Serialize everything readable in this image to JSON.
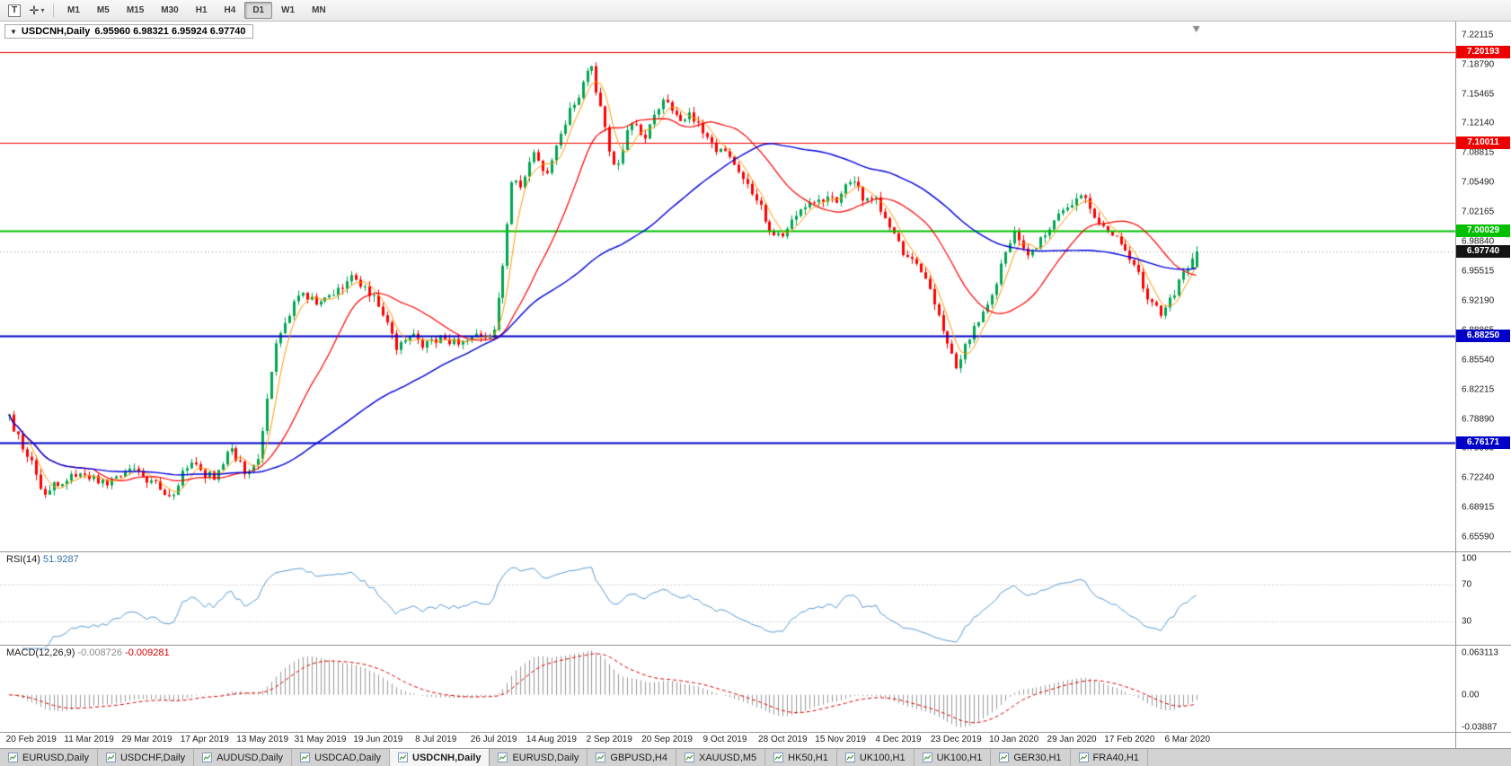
{
  "toolbar": {
    "text_tool_glyph": "T",
    "crosshair_glyph": "✛",
    "dropdown_caret": "▾",
    "timeframes": [
      "M1",
      "M5",
      "M15",
      "M30",
      "H1",
      "H4",
      "D1",
      "W1",
      "MN"
    ],
    "active_timeframe": "D1"
  },
  "chart": {
    "title_arrow": "▼",
    "symbol_title": "USDCNH,Daily",
    "ohlc_text": "6.95960 6.98321 6.95924 6.97740"
  },
  "chart_data": {
    "type": "candlestick",
    "symbol": "USDCNH",
    "timeframe": "Daily",
    "bars": 268,
    "last_bar_ohlc": [
      6.9596,
      6.98321,
      6.95924,
      6.9774
    ],
    "price_axis": {
      "min": 6.648,
      "max": 7.232,
      "ticks": [
        "7.22115",
        "7.18790",
        "7.15465",
        "7.12140",
        "7.08815",
        "7.05490",
        "7.02165",
        "6.98840",
        "6.95515",
        "6.92190",
        "6.88865",
        "6.85540",
        "6.82215",
        "6.78890",
        "6.75565",
        "6.72240",
        "6.68915",
        "6.65590"
      ]
    },
    "x_labels": [
      "20 Feb 2019",
      "11 Mar 2019",
      "29 Mar 2019",
      "17 Apr 2019",
      "13 May 2019",
      "31 May 2019",
      "19 Jun 2019",
      "8 Jul 2019",
      "26 Jul 2019",
      "14 Aug 2019",
      "2 Sep 2019",
      "20 Sep 2019",
      "9 Oct 2019",
      "28 Oct 2019",
      "15 Nov 2019",
      "4 Dec 2019",
      "23 Dec 2019",
      "10 Jan 2020",
      "29 Jan 2020",
      "17 Feb 2020",
      "6 Mar 2020"
    ],
    "horizontal_lines": [
      {
        "price": 7.20193,
        "label": "7.20193",
        "color": "#ee0000",
        "width": 1
      },
      {
        "price": 7.10011,
        "label": "7.10011",
        "color": "#ee0000",
        "width": 1
      },
      {
        "price": 7.00029,
        "label": "7.00029",
        "color": "#00c000",
        "width": 2
      },
      {
        "price": 6.8825,
        "label": "6.88250",
        "color": "#0000c8",
        "width": 2
      },
      {
        "price": 6.76171,
        "label": "6.76171",
        "color": "#0000c8",
        "width": 2
      }
    ],
    "current_price": {
      "value": 6.9774,
      "label": "6.97740",
      "badge_color": "#141414"
    },
    "colors": {
      "bull": "#00a651",
      "bear": "#ff0000",
      "background": "#ffffff"
    },
    "moving_averages": [
      {
        "period": 5,
        "color": "#ff9900",
        "width": 1
      },
      {
        "period": 20,
        "color": "#ff0000",
        "width": 1.2
      },
      {
        "period": 60,
        "color": "#0000dd",
        "width": 1.4
      }
    ],
    "price_path_anchors": [
      [
        0.0,
        6.79
      ],
      [
        0.014,
        6.752
      ],
      [
        0.029,
        6.706
      ],
      [
        0.058,
        6.73
      ],
      [
        0.081,
        6.716
      ],
      [
        0.104,
        6.735
      ],
      [
        0.12,
        6.718
      ],
      [
        0.135,
        6.7
      ],
      [
        0.151,
        6.737
      ],
      [
        0.174,
        6.722
      ],
      [
        0.186,
        6.758
      ],
      [
        0.2,
        6.728
      ],
      [
        0.209,
        6.742
      ],
      [
        0.226,
        6.88
      ],
      [
        0.244,
        6.932
      ],
      [
        0.261,
        6.918
      ],
      [
        0.278,
        6.936
      ],
      [
        0.29,
        6.952
      ],
      [
        0.304,
        6.93
      ],
      [
        0.316,
        6.905
      ],
      [
        0.325,
        6.868
      ],
      [
        0.336,
        6.886
      ],
      [
        0.348,
        6.872
      ],
      [
        0.362,
        6.88
      ],
      [
        0.377,
        6.876
      ],
      [
        0.394,
        6.882
      ],
      [
        0.408,
        6.886
      ],
      [
        0.413,
        6.93
      ],
      [
        0.423,
        7.058
      ],
      [
        0.432,
        7.048
      ],
      [
        0.441,
        7.086
      ],
      [
        0.452,
        7.06
      ],
      [
        0.462,
        7.096
      ],
      [
        0.47,
        7.128
      ],
      [
        0.481,
        7.16
      ],
      [
        0.49,
        7.186
      ],
      [
        0.497,
        7.144
      ],
      [
        0.505,
        7.096
      ],
      [
        0.511,
        7.062
      ],
      [
        0.52,
        7.114
      ],
      [
        0.528,
        7.12
      ],
      [
        0.536,
        7.104
      ],
      [
        0.545,
        7.14
      ],
      [
        0.554,
        7.15
      ],
      [
        0.566,
        7.118
      ],
      [
        0.574,
        7.134
      ],
      [
        0.583,
        7.114
      ],
      [
        0.594,
        7.096
      ],
      [
        0.606,
        7.084
      ],
      [
        0.617,
        7.064
      ],
      [
        0.629,
        7.04
      ],
      [
        0.64,
        7.006
      ],
      [
        0.652,
        6.99
      ],
      [
        0.663,
        7.018
      ],
      [
        0.675,
        7.028
      ],
      [
        0.687,
        7.04
      ],
      [
        0.698,
        7.03
      ],
      [
        0.707,
        7.062
      ],
      [
        0.719,
        7.038
      ],
      [
        0.731,
        7.034
      ],
      [
        0.742,
        7.0
      ],
      [
        0.754,
        6.976
      ],
      [
        0.766,
        6.964
      ],
      [
        0.777,
        6.93
      ],
      [
        0.789,
        6.88
      ],
      [
        0.798,
        6.85
      ],
      [
        0.806,
        6.872
      ],
      [
        0.818,
        6.906
      ],
      [
        0.829,
        6.932
      ],
      [
        0.838,
        6.976
      ],
      [
        0.847,
        7.0
      ],
      [
        0.858,
        6.976
      ],
      [
        0.868,
        6.99
      ],
      [
        0.879,
        7.01
      ],
      [
        0.891,
        7.026
      ],
      [
        0.902,
        7.042
      ],
      [
        0.914,
        7.02
      ],
      [
        0.926,
        6.996
      ],
      [
        0.937,
        6.986
      ],
      [
        0.949,
        6.956
      ],
      [
        0.96,
        6.922
      ],
      [
        0.972,
        6.906
      ],
      [
        0.983,
        6.938
      ],
      [
        0.993,
        6.958
      ],
      [
        1.0,
        6.977
      ]
    ],
    "indicators": {
      "rsi": {
        "title": "RSI(14)",
        "value": "51.9287",
        "period": 14,
        "levels": [
          30,
          70
        ],
        "axis_ticks": [
          "100",
          "70",
          "30"
        ],
        "line_color": "#5b9bd5",
        "range": [
          8,
          102
        ]
      },
      "macd": {
        "title": "MACD(12,26,9)",
        "value_main": "-0.008726",
        "value_signal": "-0.009281",
        "fast": 12,
        "slow": 26,
        "signal": 9,
        "axis_ticks": [
          "0.063113",
          "0.00",
          "-0.03887"
        ],
        "histogram_color": "#9a9a9a",
        "signal_color": "#e00000"
      }
    }
  },
  "tabs": {
    "items": [
      "EURUSD,Daily",
      "USDCHF,Daily",
      "AUDUSD,Daily",
      "USDCAD,Daily",
      "USDCNH,Daily",
      "EURUSD,Daily",
      "GBPUSD,H4",
      "XAUUSD,M5",
      "HK50,H1",
      "UK100,H1",
      "UK100,H1",
      "GER30,H1",
      "FRA40,H1"
    ],
    "active_index": 4
  }
}
